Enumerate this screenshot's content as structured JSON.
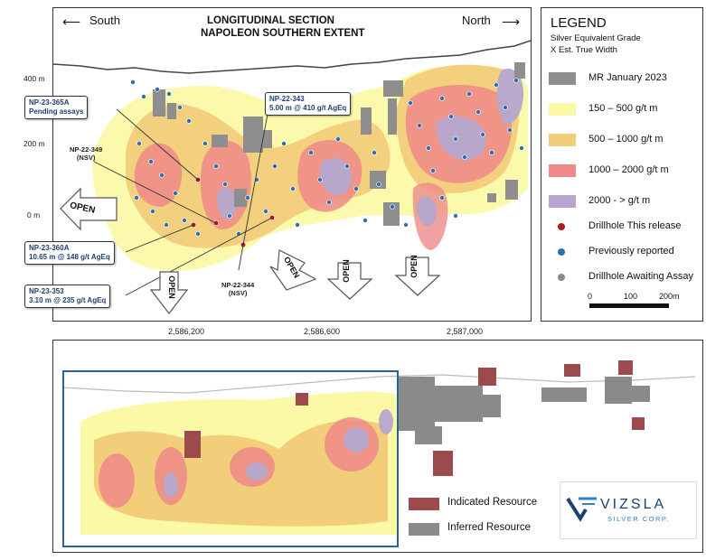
{
  "section": {
    "title_line1": "LONGITUDINAL SECTION",
    "title_line2": "NAPOLEON SOUTHERN EXTENT",
    "south": "South",
    "north": "North",
    "elevations": [
      "400 m",
      "200 m",
      "0 m"
    ],
    "eastings": [
      "2,586,200",
      "2,586,600",
      "2,587,000"
    ],
    "open_label": "OPEN"
  },
  "callouts": {
    "np365a_id": "NP-23-365A",
    "np365a_note": "Pending assays",
    "np343_id": "NP-22-343",
    "np343_note": "5.00 m @ 410 g/t AgEq",
    "np349_id": "NP-22-349",
    "np349_note": "(NSV)",
    "np360a_id": "NP-23-360A",
    "np360a_note": "10.65 m @ 148 g/t AgEq",
    "np353_id": "NP-23-353",
    "np353_note": "3.10 m @ 235 g/t AgEq",
    "np344_id": "NP-22-344",
    "np344_note": "(NSV)"
  },
  "legend": {
    "title": "LEGEND",
    "subtitle1": "Silver Equivalent Grade",
    "subtitle2": "X Est. True Width",
    "items": [
      {
        "label": "MR January 2023",
        "color": "#8e8e8e"
      },
      {
        "label": "150 – 500 g/t m",
        "color": "#fbf9a6"
      },
      {
        "label": "500 – 1000 g/t m",
        "color": "#f2cd7a"
      },
      {
        "label": "1000 – 2000 g/t m",
        "color": "#ee8a88"
      },
      {
        "label": "2000 - > g/t m",
        "color": "#b5a7cf"
      }
    ],
    "drillholes": [
      {
        "label": "Drillhole This release",
        "color": "#b21a1a"
      },
      {
        "label": "Previously reported",
        "color": "#2b6fb5"
      },
      {
        "label": "Drillhole Awaiting Assay",
        "color": "#8a8a8a"
      }
    ],
    "scale_labels": [
      "0",
      "100",
      "200m"
    ]
  },
  "resource_legend": {
    "indicated": "Indicated Resource",
    "inferred": "Inferred Resource",
    "indicated_color": "#9c4a4e",
    "inferred_color": "#8a8a8a"
  },
  "logo": {
    "name": "VIZSLA",
    "sub": "SILVER CORP."
  }
}
